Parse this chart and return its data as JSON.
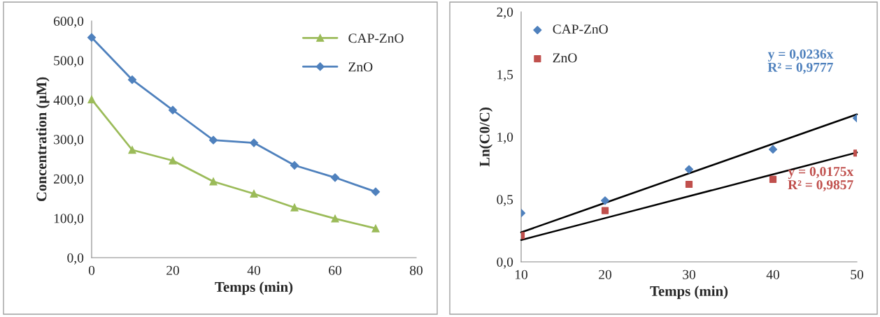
{
  "chart_data": [
    {
      "type": "line",
      "xlabel": "Temps (min)",
      "ylabel": "Concentration (µM)",
      "x": [
        0,
        10,
        20,
        30,
        40,
        50,
        60,
        70
      ],
      "series": [
        {
          "name": "CAP-ZnO",
          "color": "#9bbb59",
          "marker": "triangle",
          "values": [
            401,
            273,
            246,
            193,
            162,
            127,
            99,
            74
          ]
        },
        {
          "name": "ZnO",
          "color": "#4f81bd",
          "marker": "diamond",
          "values": [
            558,
            451,
            374,
            298,
            291,
            234,
            203,
            167
          ]
        }
      ],
      "xlim": [
        0,
        80
      ],
      "xticks": [
        0,
        20,
        40,
        60,
        80
      ],
      "ylim": [
        0,
        600
      ],
      "yticks": [
        {
          "value": 0,
          "label": "0,0"
        },
        {
          "value": 100,
          "label": "100,0"
        },
        {
          "value": 200,
          "label": "200,0"
        },
        {
          "value": 300,
          "label": "300,0"
        },
        {
          "value": 400,
          "label": "400,0"
        },
        {
          "value": 500,
          "label": "500,0"
        },
        {
          "value": 600,
          "label": "600,0"
        }
      ],
      "grid": false,
      "legend": "top right"
    },
    {
      "type": "scatter",
      "xlabel": "Temps (min)",
      "ylabel": "Ln(C0/C)",
      "x": [
        10,
        20,
        30,
        40,
        50
      ],
      "series": [
        {
          "name": "CAP-ZnO",
          "color": "#4f81bd",
          "marker": "diamond",
          "values": [
            0.39,
            0.49,
            0.74,
            0.9,
            1.15
          ]
        },
        {
          "name": "ZnO",
          "color": "#c0504d",
          "marker": "square",
          "values": [
            0.21,
            0.41,
            0.62,
            0.66,
            0.87
          ]
        },
        {
          "type": "line",
          "color": "#000000",
          "marker": "none",
          "values": [
            0.236,
            0.472,
            0.708,
            0.944,
            1.18
          ]
        },
        {
          "type": "line",
          "color": "#000000",
          "marker": "none",
          "values": [
            0.175,
            0.35,
            0.525,
            0.7,
            0.875
          ]
        }
      ],
      "annotations": [
        "y = 0,0236x\nR² = 0,9777",
        "y = 0,0175x\nR² = 0,9857"
      ],
      "xlim": [
        10,
        50
      ],
      "xticks": [
        10,
        20,
        30,
        40,
        50
      ],
      "ylim": [
        0,
        2
      ],
      "yticks": [
        {
          "value": 0,
          "label": "0,0"
        },
        {
          "value": 0.5,
          "label": "0,5"
        },
        {
          "value": 1,
          "label": "1,0"
        },
        {
          "value": 1.5,
          "label": "1,5"
        },
        {
          "value": 2,
          "label": "2,0"
        }
      ],
      "grid": false,
      "legend": "top left"
    }
  ]
}
